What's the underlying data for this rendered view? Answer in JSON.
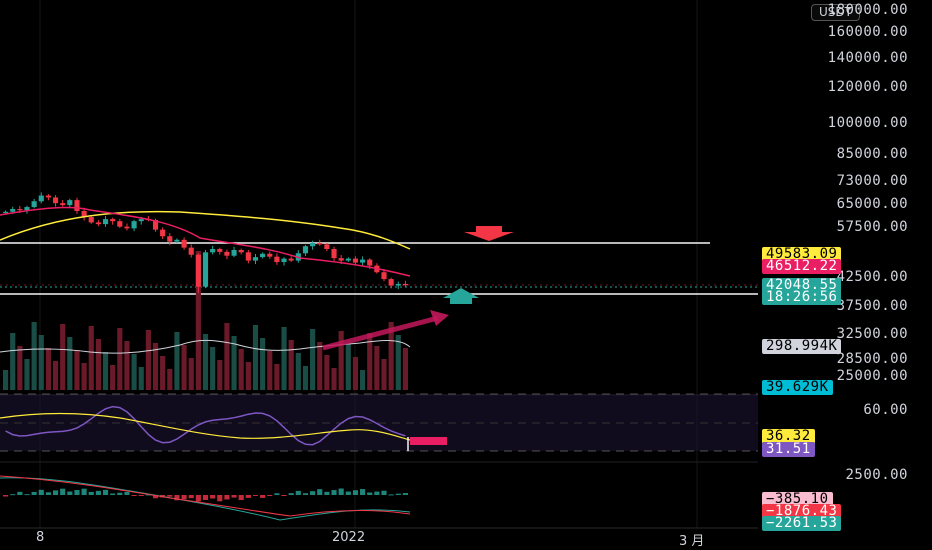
{
  "currency": {
    "label": "USDT"
  },
  "price_axis": {
    "labels": [
      "180000.00",
      "160000.00",
      "140000.00",
      "120000.00",
      "100000.00",
      "85000.00",
      "73000.00",
      "65000.00",
      "57500.00",
      "42500.00",
      "37500.00",
      "32500.00",
      "28500.00",
      "25000.00"
    ],
    "osc_labels": [
      "60.00"
    ],
    "macd_labels": [
      "2500.00"
    ]
  },
  "price_tags": {
    "ma_slow": {
      "text": "49583.09",
      "color": "#ffeb3b"
    },
    "ma_fast": {
      "text": "46512.22",
      "color": "#e91e63"
    },
    "last_price": {
      "text": "42048.55",
      "color": "#26a69a"
    },
    "countdown": {
      "text": "18:26:56",
      "color": "#26a69a"
    },
    "volume_ma": {
      "text": "298.994K",
      "color": "#d1d4dc"
    },
    "volume": {
      "text": "39.629K",
      "color": "#00bcd4"
    },
    "rsi_ma": {
      "text": "36.32",
      "color": "#ffeb3b"
    },
    "rsi": {
      "text": "31.51",
      "color": "#7e57c2"
    },
    "macd_hist": {
      "text": "−385.10",
      "color": "#f8bbd0"
    },
    "macd_signal": {
      "text": "−1876.43",
      "color": "#f23645"
    },
    "macd_line": {
      "text": "−2261.53",
      "color": "#26a69a"
    }
  },
  "time_axis": {
    "labels": [
      "8",
      "2022",
      "3 月"
    ]
  },
  "annotations": {
    "resistance_level": 50500,
    "support_level": 40500,
    "arrow_down": "arrow-down-icon",
    "arrow_up": "arrow-up-icon"
  },
  "chart_data": {
    "type": "candlestick",
    "indicators": [
      "MA (yellow)",
      "MA (red)",
      "Volume",
      "RSI",
      "MACD"
    ],
    "candles_close_approx": [
      57800,
      58500,
      58200,
      59000,
      60500,
      62000,
      61500,
      60000,
      59500,
      60800,
      58000,
      56500,
      55200,
      54800,
      56000,
      55500,
      54200,
      53800,
      55500,
      56000,
      55800,
      53500,
      52000,
      50800,
      51200,
      49500,
      48000,
      41800,
      48500,
      49200,
      48600,
      47800,
      49000,
      48500,
      46800,
      47500,
      48200,
      47600,
      46500,
      47200,
      46800,
      48300,
      49800,
      50500,
      50200,
      49200,
      47300,
      46800,
      47200,
      46400,
      47000,
      45800,
      44500,
      43200,
      42000,
      42300,
      42048.55
    ],
    "last_price": 42048.55
  }
}
